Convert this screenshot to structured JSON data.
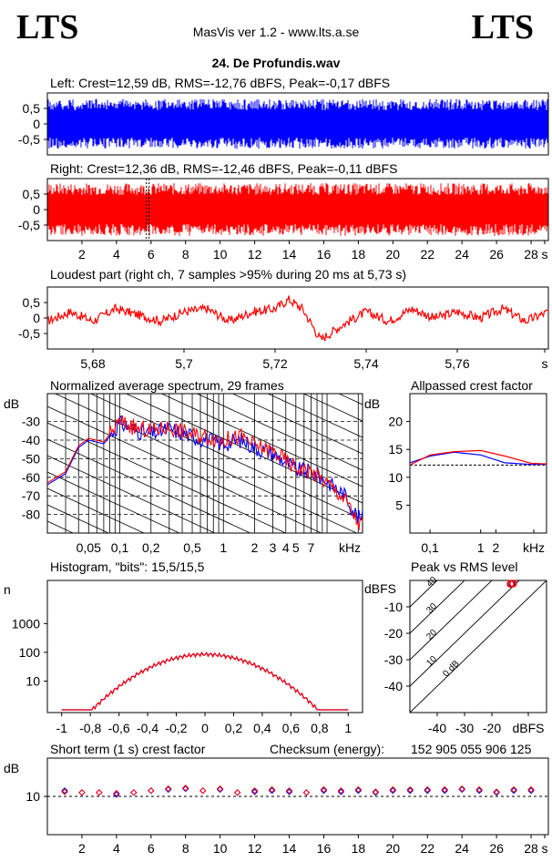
{
  "header": {
    "logo_left": "LTS",
    "logo_right": "LTS",
    "app_title": "MasVis ver 1.2 - www.lts.a.se",
    "track_title": "24. De Profundis.wav"
  },
  "colors": {
    "left": "#0000ff",
    "right": "#ff0000",
    "grid": "#000000"
  },
  "chart_data": [
    {
      "id": "left-waveform",
      "type": "area",
      "title": "Left: Crest=12,59 dB, RMS=-12,76 dBFS, Peak=-0,17 dBFS",
      "ylim": [
        -1,
        1
      ],
      "yticks": [
        "0,5",
        "0",
        "-0,5"
      ],
      "series": [
        {
          "name": "Left",
          "envelope": 0.8
        }
      ]
    },
    {
      "id": "right-waveform",
      "type": "area",
      "title": "Right: Crest=12,36 dB, RMS=-12,46 dBFS, Peak=-0,11 dBFS",
      "ylim": [
        -1,
        1
      ],
      "yticks": [
        "0,5",
        "0",
        "-0,5"
      ],
      "xlim": [
        0,
        29
      ],
      "xticks": [
        "2",
        "4",
        "6",
        "8",
        "10",
        "12",
        "14",
        "16",
        "18",
        "20",
        "22",
        "24",
        "26",
        "28",
        "s"
      ],
      "marker_time": 5.73,
      "series": [
        {
          "name": "Right",
          "envelope": 0.85
        }
      ]
    },
    {
      "id": "loudest-part",
      "type": "line",
      "title": "Loudest part (right ch, 7 samples >95% during 20 ms at 5,73 s)",
      "xlim": [
        5.67,
        5.78
      ],
      "ylim": [
        -1,
        1
      ],
      "yticks": [
        "0,5",
        "0",
        "-0,5"
      ],
      "xticks": [
        "5,68",
        "5,7",
        "5,72",
        "5,74",
        "5,76",
        "s"
      ],
      "series": [
        {
          "name": "Right",
          "x": [
            5.67,
            5.675,
            5.68,
            5.685,
            5.69,
            5.695,
            5.7,
            5.705,
            5.71,
            5.715,
            5.72,
            5.723,
            5.726,
            5.73,
            5.735,
            5.74,
            5.745,
            5.75,
            5.755,
            5.76,
            5.765,
            5.77,
            5.775,
            5.78
          ],
          "y": [
            -0.1,
            0.2,
            -0.1,
            0.3,
            0.1,
            -0.1,
            0.2,
            0.3,
            -0.1,
            0.2,
            0.3,
            0.6,
            0.3,
            -0.7,
            -0.2,
            0.2,
            -0.1,
            0.3,
            0.0,
            0.2,
            0.0,
            0.3,
            -0.1,
            0.2
          ]
        }
      ]
    },
    {
      "id": "spectrum",
      "type": "line",
      "title": "Normalized average spectrum, 29 frames",
      "ylabel": "dB",
      "ylim": [
        -90,
        -15
      ],
      "yticks": [
        "-30",
        "-40",
        "-50",
        "-60",
        "-70",
        "-80"
      ],
      "xscale": "log",
      "xlim": [
        0.02,
        22
      ],
      "xticks": [
        "0,05",
        "0,1",
        "0,2",
        "0,5",
        "1",
        "2",
        "3",
        "4",
        "5",
        "7",
        "kHz"
      ],
      "series": [
        {
          "name": "Left",
          "x": [
            0.02,
            0.03,
            0.04,
            0.05,
            0.07,
            0.1,
            0.15,
            0.2,
            0.3,
            0.5,
            0.7,
            1,
            1.5,
            2,
            3,
            4,
            5,
            7,
            10,
            15,
            20
          ],
          "y": [
            -64,
            -58,
            -44,
            -40,
            -42,
            -31,
            -35,
            -37,
            -34,
            -38,
            -40,
            -42,
            -40,
            -44,
            -47,
            -52,
            -56,
            -57,
            -62,
            -70,
            -82
          ]
        },
        {
          "name": "Right",
          "x": [
            0.02,
            0.03,
            0.04,
            0.05,
            0.07,
            0.1,
            0.15,
            0.2,
            0.3,
            0.5,
            0.7,
            1,
            1.5,
            2,
            3,
            4,
            5,
            7,
            10,
            15,
            20
          ],
          "y": [
            -63,
            -57,
            -43,
            -39,
            -41,
            -30,
            -34,
            -35,
            -33,
            -37,
            -38,
            -40,
            -38,
            -43,
            -46,
            -51,
            -55,
            -57,
            -63,
            -72,
            -85
          ]
        }
      ]
    },
    {
      "id": "allpassed-crest",
      "type": "line",
      "title": "Allpassed crest factor",
      "ylabel": "dB",
      "ylim": [
        0,
        25
      ],
      "yticks": [
        "20",
        "15",
        "10",
        "5"
      ],
      "xscale": "log",
      "xlim": [
        0.04,
        20
      ],
      "xticks": [
        "0,1",
        "1",
        "2",
        "kHz"
      ],
      "series": [
        {
          "name": "Left",
          "x": [
            0.04,
            0.1,
            0.3,
            1,
            3,
            10,
            20
          ],
          "y": [
            12.6,
            13.8,
            14.5,
            14.0,
            12.6,
            12.3,
            12.3
          ]
        },
        {
          "name": "Right",
          "x": [
            0.04,
            0.1,
            0.3,
            1,
            3,
            10,
            20
          ],
          "y": [
            12.2,
            14.0,
            14.6,
            14.8,
            13.8,
            12.5,
            12.4
          ]
        }
      ]
    },
    {
      "id": "histogram",
      "type": "line",
      "title": "Histogram, \"bits\": 15,5/15,5",
      "ylabel": "n",
      "yscale": "log",
      "yticks": [
        "1000",
        "100",
        "10"
      ],
      "xlim": [
        -1.1,
        1.1
      ],
      "xticks": [
        "-1",
        "-0,8",
        "-0,6",
        "-0,4",
        "-0,2",
        "0",
        "0,2",
        "0,4",
        "0,6",
        "0,8",
        "1"
      ],
      "series": [
        {
          "name": "Left",
          "x": [
            -1,
            -0.9,
            -0.8,
            -0.7,
            -0.6,
            -0.5,
            -0.4,
            -0.3,
            -0.2,
            -0.1,
            0,
            0.1,
            0.2,
            0.3,
            0.4,
            0.5,
            0.6,
            0.7,
            0.8,
            0.9,
            1
          ],
          "y": [
            1,
            2,
            5,
            10,
            18,
            30,
            45,
            62,
            78,
            90,
            95,
            90,
            78,
            62,
            45,
            30,
            18,
            10,
            5,
            2,
            1
          ]
        },
        {
          "name": "Right",
          "x": [
            -1,
            -0.9,
            -0.8,
            -0.7,
            -0.6,
            -0.5,
            -0.4,
            -0.3,
            -0.2,
            -0.1,
            0,
            0.1,
            0.2,
            0.3,
            0.4,
            0.5,
            0.6,
            0.7,
            0.8,
            0.9,
            1
          ],
          "y": [
            1,
            3,
            6,
            11,
            19,
            31,
            46,
            63,
            79,
            91,
            96,
            91,
            79,
            63,
            46,
            31,
            19,
            11,
            6,
            3,
            1
          ]
        }
      ]
    },
    {
      "id": "peak-vs-rms",
      "type": "scatter",
      "title": "Peak vs RMS level",
      "ylabel": "dBFS",
      "ylim": [
        -50,
        0
      ],
      "xlim": [
        -50,
        0
      ],
      "yticks": [
        "-10",
        "-20",
        "-30",
        "-40"
      ],
      "xticks": [
        "-40",
        "-30",
        "-20",
        "dBFS"
      ],
      "diagonal_labels": [
        "40",
        "30",
        "20",
        "10",
        "0 dB"
      ],
      "series": [
        {
          "name": "Left",
          "x": [
            -13,
            -12.5
          ],
          "y": [
            -0.2,
            -0.2
          ]
        },
        {
          "name": "Right",
          "x": [
            -12.5,
            -12.2,
            -13.2
          ],
          "y": [
            -0.1,
            -0.2,
            -0.3
          ]
        }
      ]
    },
    {
      "id": "short-term-crest",
      "type": "scatter",
      "title": "Short term (1 s) crest factor",
      "ylabel": "dB",
      "ylim": [
        0,
        20
      ],
      "yticks": [
        "10"
      ],
      "xlim": [
        0,
        29
      ],
      "xticks": [
        "2",
        "4",
        "6",
        "8",
        "10",
        "12",
        "14",
        "16",
        "18",
        "20",
        "22",
        "24",
        "26",
        "28",
        "s"
      ],
      "series": [
        {
          "name": "Left",
          "x": [
            1,
            2,
            3,
            4,
            5,
            6,
            7,
            8,
            9,
            10,
            11,
            12,
            13,
            14,
            15,
            16,
            17,
            18,
            19,
            20,
            21,
            22,
            23,
            24,
            25,
            26,
            27,
            28
          ],
          "y": [
            11.5,
            11,
            11,
            10.5,
            11,
            11.5,
            11.8,
            12,
            11.5,
            11.8,
            11,
            11.2,
            11.5,
            11.2,
            11,
            11.5,
            11.2,
            11.5,
            11,
            11.5,
            11.5,
            11.5,
            11.5,
            11.8,
            11.5,
            11,
            11.5,
            11.5
          ]
        },
        {
          "name": "Right",
          "x": [
            1,
            2,
            3,
            4,
            5,
            6,
            7,
            8,
            9,
            10,
            11,
            12,
            13,
            14,
            15,
            16,
            17,
            18,
            19,
            20,
            21,
            22,
            23,
            24,
            25,
            26,
            27,
            28
          ],
          "y": [
            11.2,
            11,
            11,
            10.8,
            11,
            11.5,
            12,
            12.2,
            11.5,
            12,
            11,
            11.5,
            11.8,
            11.5,
            11,
            11.8,
            11.5,
            11.8,
            11.2,
            11.8,
            11.8,
            11.8,
            11.8,
            12,
            11.8,
            11.2,
            11.8,
            11.8
          ]
        }
      ],
      "checksum_label": "Checksum (energy):",
      "checksum_value": "152 905 055 906 125"
    }
  ]
}
